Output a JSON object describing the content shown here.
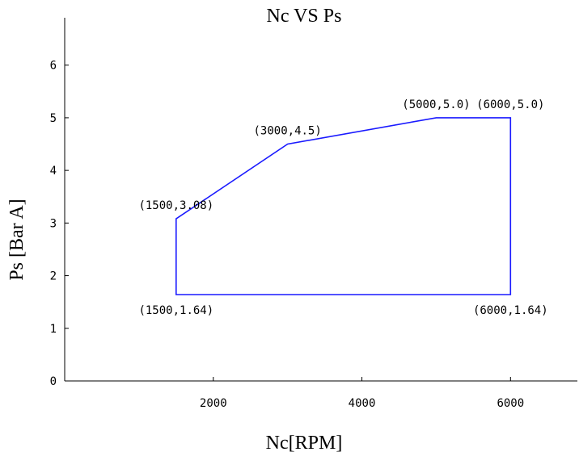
{
  "chart_data": {
    "type": "line",
    "title": "Nc VS Ps",
    "xlabel": "Nc[RPM]",
    "ylabel": "Ps [Bar A]",
    "xlim": [
      0,
      6900
    ],
    "ylim": [
      0,
      6.9
    ],
    "xticks": [
      2000,
      4000,
      6000
    ],
    "xtick_labels": [
      "2000",
      "4000",
      "6000"
    ],
    "yticks": [
      0,
      1,
      2,
      3,
      4,
      5,
      6
    ],
    "ytick_labels": [
      "0",
      "1",
      "2",
      "3",
      "4",
      "5",
      "6"
    ],
    "grid": false,
    "series": [
      {
        "color": "#1a1aff",
        "closed": true,
        "points": [
          {
            "x": 1500,
            "y": 1.64
          },
          {
            "x": 1500,
            "y": 3.08
          },
          {
            "x": 3000,
            "y": 4.5
          },
          {
            "x": 5000,
            "y": 5.0
          },
          {
            "x": 6000,
            "y": 5.0
          },
          {
            "x": 6000,
            "y": 1.64
          }
        ]
      }
    ],
    "annotations": [
      {
        "text": "(1500,1.64)",
        "x": 1500,
        "y": 1.64,
        "position": "below"
      },
      {
        "text": "(1500,3.08)",
        "x": 1500,
        "y": 3.08,
        "position": "above"
      },
      {
        "text": "(3000,4.5)",
        "x": 3000,
        "y": 4.5,
        "position": "above"
      },
      {
        "text": "(5000,5.0)",
        "x": 5000,
        "y": 5.0,
        "position": "above"
      },
      {
        "text": "(6000,5.0)",
        "x": 6000,
        "y": 5.0,
        "position": "above"
      },
      {
        "text": "(6000,1.64)",
        "x": 6000,
        "y": 1.64,
        "position": "below"
      }
    ]
  }
}
